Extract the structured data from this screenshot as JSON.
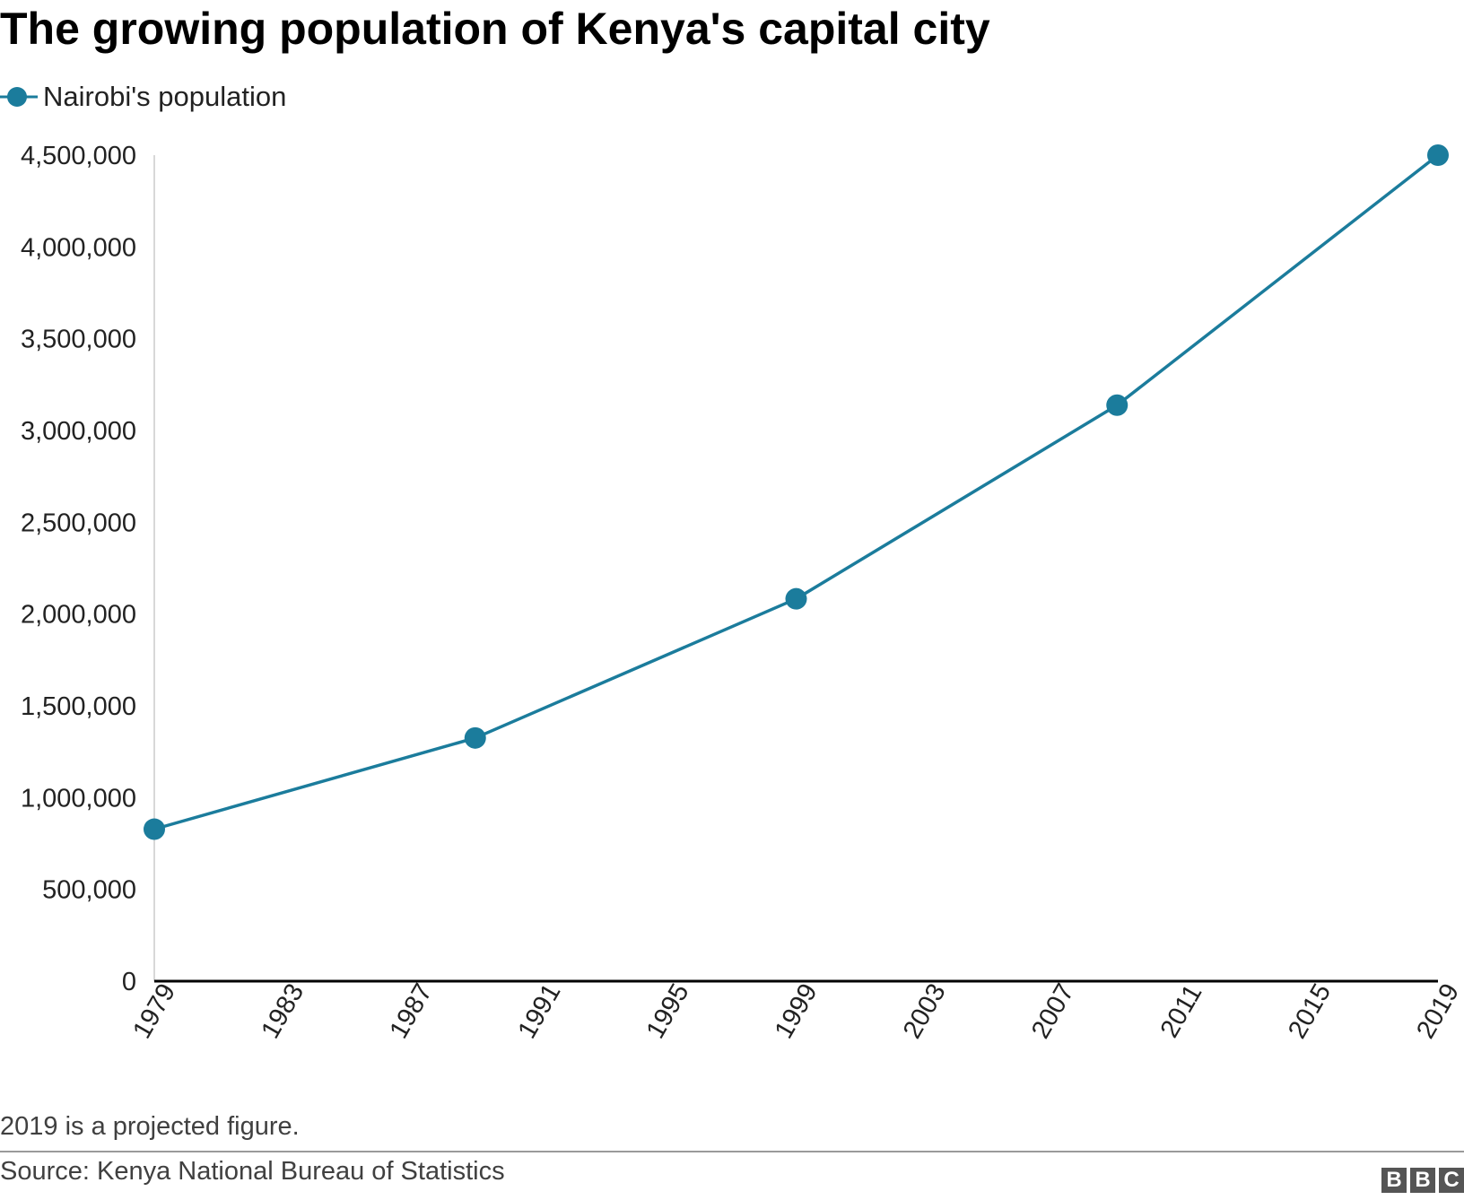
{
  "title": "The growing population of Kenya's capital city",
  "legend": {
    "label": "Nairobi's population"
  },
  "footnote": "2019 is a projected figure.",
  "source": "Source: Kenya National Bureau of Statistics",
  "logo": {
    "letters": [
      "B",
      "B",
      "C"
    ]
  },
  "colors": {
    "series": "#1b7c9c",
    "axis": "#000000",
    "gridline": "#cccccc",
    "text": "#222222"
  },
  "chart_data": {
    "type": "line",
    "title": "The growing population of Kenya's capital city",
    "xlabel": "",
    "ylabel": "",
    "xlim": [
      1979,
      2019
    ],
    "ylim": [
      0,
      4500000
    ],
    "grid": false,
    "legend_position": "top-left",
    "x_ticks": [
      "1979",
      "1983",
      "1987",
      "1991",
      "1995",
      "1999",
      "2003",
      "2007",
      "2011",
      "2015",
      "2019"
    ],
    "y_ticks": [
      "0",
      "500,000",
      "1,000,000",
      "1,500,000",
      "2,000,000",
      "2,500,000",
      "3,000,000",
      "3,500,000",
      "4,000,000",
      "4,500,000"
    ],
    "series": [
      {
        "name": "Nairobi's population",
        "x": [
          1979,
          1989,
          1999,
          2009,
          2019
        ],
        "y": [
          828000,
          1325000,
          2083000,
          3138000,
          4500000
        ]
      }
    ]
  }
}
